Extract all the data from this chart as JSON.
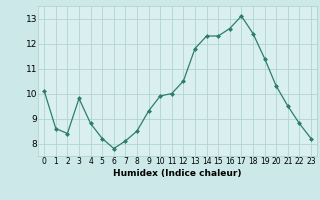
{
  "x": [
    0,
    1,
    2,
    3,
    4,
    5,
    6,
    7,
    8,
    9,
    10,
    11,
    12,
    13,
    14,
    15,
    16,
    17,
    18,
    19,
    20,
    21,
    22,
    23
  ],
  "y": [
    10.1,
    8.6,
    8.4,
    9.8,
    8.8,
    8.2,
    7.8,
    8.1,
    8.5,
    9.3,
    9.9,
    10.0,
    10.5,
    11.8,
    12.3,
    12.3,
    12.6,
    13.1,
    12.4,
    11.4,
    10.3,
    9.5,
    8.8,
    8.2
  ],
  "xlabel": "Humidex (Indice chaleur)",
  "ylim": [
    7.5,
    13.5
  ],
  "xlim": [
    -0.5,
    23.5
  ],
  "yticks": [
    8,
    9,
    10,
    11,
    12,
    13
  ],
  "xticks": [
    0,
    1,
    2,
    3,
    4,
    5,
    6,
    7,
    8,
    9,
    10,
    11,
    12,
    13,
    14,
    15,
    16,
    17,
    18,
    19,
    20,
    21,
    22,
    23
  ],
  "line_color": "#2d7d6e",
  "marker": "D",
  "marker_size": 2.0,
  "bg_color": "#cce8e8",
  "grid_color": "#aacece",
  "axes_bg": "#daf0f0",
  "tick_fontsize": 5.5,
  "xlabel_fontsize": 6.5,
  "ytick_fontsize": 6.5
}
